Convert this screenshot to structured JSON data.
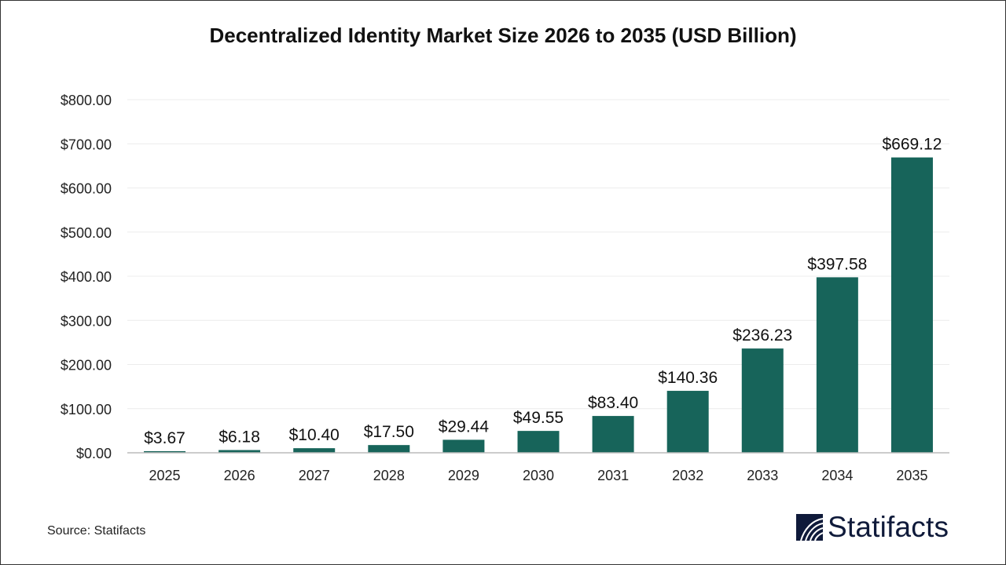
{
  "chart_data": {
    "type": "bar",
    "title": "Decentralized Identity Market Size 2026 to 2035 (USD Billion)",
    "categories": [
      "2025",
      "2026",
      "2027",
      "2028",
      "2029",
      "2030",
      "2031",
      "2032",
      "2033",
      "2034",
      "2035"
    ],
    "values": [
      3.67,
      6.18,
      10.4,
      17.5,
      29.44,
      49.55,
      83.4,
      140.36,
      236.23,
      397.58,
      669.12
    ],
    "data_labels": [
      "$3.67",
      "$6.18",
      "$10.40",
      "$17.50",
      "$29.44",
      "$49.55",
      "$83.40",
      "$140.36",
      "$236.23",
      "$397.58",
      "$669.12"
    ],
    "yticks": [
      "$0.00",
      "$100.00",
      "$200.00",
      "$300.00",
      "$400.00",
      "$500.00",
      "$600.00",
      "$700.00",
      "$800.00"
    ],
    "ylim": [
      0,
      800
    ],
    "xlabel": "",
    "ylabel": "",
    "grid": true,
    "bar_color": "#17645a"
  },
  "source": "Source: Statifacts",
  "logo": {
    "text": "Statifacts",
    "color": "#0f1a3a"
  }
}
